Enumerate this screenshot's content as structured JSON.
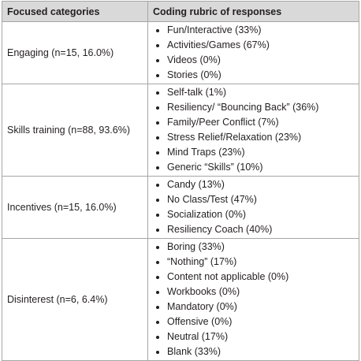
{
  "table": {
    "header": [
      "Focused categories",
      "Coding rubric of responses"
    ],
    "rows": [
      {
        "category": "Engaging (n=15, 16.0%)",
        "items": [
          "Fun/Interactive (33%)",
          "Activities/Games (67%)",
          "Videos (0%)",
          "Stories (0%)"
        ]
      },
      {
        "category": "Skills training (n=88, 93.6%)",
        "items": [
          "Self-talk (1%)",
          "Resiliency/ “Bouncing Back” (36%)",
          "Family/Peer Conflict (7%)",
          "Stress Relief/Relaxation (23%)",
          "Mind Traps (23%)",
          "Generic “Skills” (10%)"
        ]
      },
      {
        "category": "Incentives (n=15, 16.0%)",
        "items": [
          "Candy (13%)",
          "No Class/Test (47%)",
          "Socialization (0%)",
          "Resiliency Coach (40%)"
        ]
      },
      {
        "category": "Disinterest (n=6, 6.4%)",
        "items": [
          "Boring (33%)",
          "“Nothing” (17%)",
          "Content not applicable (0%)",
          "Workbooks (0%)",
          "Mandatory (0%)",
          "Offensive (0%)",
          "Neutral (17%)",
          "Blank (33%)"
        ]
      }
    ]
  }
}
